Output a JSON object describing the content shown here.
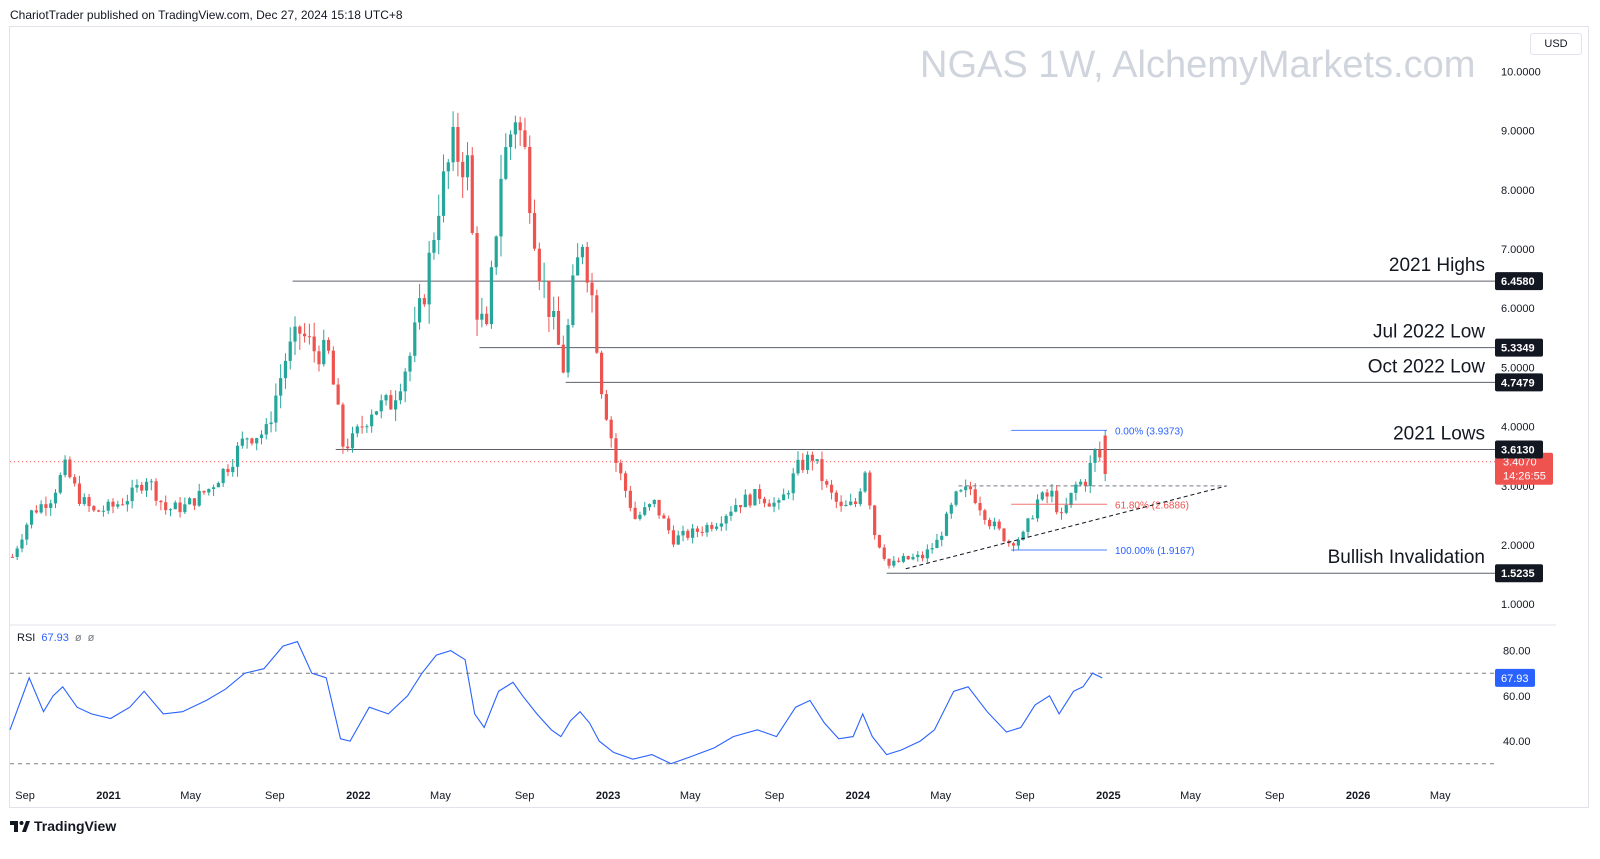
{
  "header": {
    "publisher_text": "ChariotTrader published on TradingView.com, Dec 27, 2024 15:18 UTC+8"
  },
  "watermark": "NGAS 1W, AlchemyMarkets.com",
  "currency": "USD",
  "footer": {
    "brand": "TradingView",
    "logo_icon": "tradingview-logo-icon"
  },
  "colors": {
    "up": "#26a69a",
    "down": "#ef5350",
    "rsi": "#2962ff",
    "level": "#131722"
  },
  "chart_data": [
    {
      "type": "candlestick",
      "symbol": "NGAS",
      "timeframe": "1W",
      "y_axis": {
        "ticks": [
          1.0,
          2.0,
          3.0,
          4.0,
          5.0,
          6.0,
          7.0,
          8.0,
          9.0,
          10.0
        ],
        "tick_labels": [
          "1.0000",
          "2.0000",
          "3.0000",
          "4.0000",
          "5.0000",
          "6.0000",
          "7.0000",
          "8.0000",
          "9.0000",
          "10.0000"
        ],
        "ylim": [
          0.7,
          10.7
        ]
      },
      "x_axis": {
        "tick_labels": [
          "Sep",
          "2021",
          "May",
          "Sep",
          "2022",
          "May",
          "Sep",
          "2023",
          "May",
          "Sep",
          "2024",
          "May",
          "Sep",
          "2025",
          "May",
          "Sep",
          "2026",
          "May"
        ],
        "xlim": [
          "2020-08-10",
          "2026-07-20"
        ]
      },
      "close_path": [
        [
          "2020-08-10",
          1.8
        ],
        [
          "2020-09-07",
          2.55
        ],
        [
          "2020-10-05",
          2.8
        ],
        [
          "2020-10-26",
          3.3
        ],
        [
          "2020-11-16",
          2.8
        ],
        [
          "2020-12-07",
          2.55
        ],
        [
          "2021-01-04",
          2.65
        ],
        [
          "2021-02-01",
          2.85
        ],
        [
          "2021-02-22",
          3.15
        ],
        [
          "2021-03-22",
          2.6
        ],
        [
          "2021-04-19",
          2.65
        ],
        [
          "2021-05-24",
          2.95
        ],
        [
          "2021-06-21",
          3.35
        ],
        [
          "2021-07-19",
          3.85
        ],
        [
          "2021-08-16",
          3.9
        ],
        [
          "2021-09-13",
          5.15
        ],
        [
          "2021-10-04",
          5.6
        ],
        [
          "2021-10-25",
          5.3
        ],
        [
          "2021-11-15",
          5.2
        ],
        [
          "2021-12-06",
          3.7
        ],
        [
          "2021-12-20",
          3.75
        ],
        [
          "2022-01-17",
          4.3
        ],
        [
          "2022-02-14",
          4.4
        ],
        [
          "2022-03-14",
          5.2
        ],
        [
          "2022-04-04",
          6.3
        ],
        [
          "2022-04-25",
          7.8
        ],
        [
          "2022-05-16",
          8.7
        ],
        [
          "2022-06-06",
          8.4
        ],
        [
          "2022-06-20",
          6.0
        ],
        [
          "2022-07-04",
          5.55
        ],
        [
          "2022-07-25",
          8.3
        ],
        [
          "2022-08-15",
          9.3
        ],
        [
          "2022-08-29",
          8.6
        ],
        [
          "2022-09-19",
          6.7
        ],
        [
          "2022-10-10",
          5.7
        ],
        [
          "2022-10-24",
          5.0
        ],
        [
          "2022-11-07",
          6.3
        ],
        [
          "2022-11-21",
          7.2
        ],
        [
          "2022-12-05",
          6.2
        ],
        [
          "2022-12-19",
          4.7
        ],
        [
          "2023-01-09",
          3.4
        ],
        [
          "2023-02-06",
          2.45
        ],
        [
          "2023-03-06",
          2.7
        ],
        [
          "2023-04-03",
          2.1
        ],
        [
          "2023-05-01",
          2.2
        ],
        [
          "2023-06-05",
          2.4
        ],
        [
          "2023-07-03",
          2.7
        ],
        [
          "2023-08-07",
          2.85
        ],
        [
          "2023-09-04",
          2.65
        ],
        [
          "2023-10-02",
          3.3
        ],
        [
          "2023-10-23",
          3.5
        ],
        [
          "2023-11-13",
          2.95
        ],
        [
          "2023-12-04",
          2.6
        ],
        [
          "2023-12-25",
          2.7
        ],
        [
          "2024-01-08",
          3.3
        ],
        [
          "2024-01-22",
          2.2
        ],
        [
          "2024-02-12",
          1.65
        ],
        [
          "2024-03-04",
          1.75
        ],
        [
          "2024-04-01",
          1.8
        ],
        [
          "2024-04-22",
          2.05
        ],
        [
          "2024-05-20",
          2.8
        ],
        [
          "2024-06-10",
          2.95
        ],
        [
          "2024-07-08",
          2.4
        ],
        [
          "2024-08-05",
          2.05
        ],
        [
          "2024-08-26",
          2.15
        ],
        [
          "2024-09-16",
          2.75
        ],
        [
          "2024-10-07",
          2.85
        ],
        [
          "2024-10-21",
          2.45
        ],
        [
          "2024-11-11",
          3.0
        ],
        [
          "2024-11-25",
          3.1
        ],
        [
          "2024-12-09",
          3.55
        ],
        [
          "2024-12-23",
          3.407
        ]
      ],
      "current_price": {
        "value": 3.407,
        "label": "3.4070",
        "countdown": "14:26:55"
      },
      "levels": [
        {
          "name": "2021 Highs",
          "value": 6.458,
          "label": "6.4580",
          "start": "2021-09-27"
        },
        {
          "name": "Jul 2022 Low",
          "value": 5.3349,
          "label": "5.3349",
          "start": "2022-06-27"
        },
        {
          "name": "Oct 2022 Low",
          "value": 4.7479,
          "label": "4.7479",
          "start": "2022-10-31"
        },
        {
          "name": "2021 Lows",
          "value": 3.613,
          "label": "3.6130",
          "start": "2021-11-29"
        },
        {
          "name": "Bullish Invalidation",
          "value": 1.5235,
          "label": "1.5235",
          "start": "2024-02-12"
        }
      ],
      "fibonacci": {
        "start": "2024-08-12",
        "end": "2024-12-30",
        "levels": [
          {
            "label": "0.00% (3.9373)",
            "value": 3.9373,
            "color": "#2962ff"
          },
          {
            "label": "61.80% (2.6886)",
            "value": 2.6886,
            "color": "#ef5350"
          },
          {
            "label": "100.00% (1.9167)",
            "value": 1.9167,
            "color": "#2962ff"
          }
        ]
      },
      "trendline": {
        "from": [
          "2024-03-11",
          1.6
        ],
        "to": [
          "2025-06-23",
          3.0
        ]
      },
      "support_dashed": {
        "from": [
          "2024-05-27",
          3.0
        ],
        "to": [
          "2025-06-23",
          3.0
        ]
      }
    },
    {
      "type": "line",
      "indicator": "RSI",
      "value_label": "67.93",
      "extra_labels": [
        "ø",
        "ø"
      ],
      "y_axis": {
        "ticks": [
          40,
          60,
          80
        ],
        "tick_labels": [
          "40.00",
          "60.00",
          "80.00"
        ],
        "ylim": [
          25,
          90
        ]
      },
      "bands": [
        70,
        30
      ],
      "series": [
        [
          "2020-08-10",
          45
        ],
        [
          "2020-09-07",
          68
        ],
        [
          "2020-09-28",
          53
        ],
        [
          "2020-10-12",
          60
        ],
        [
          "2020-10-26",
          64
        ],
        [
          "2020-11-16",
          55
        ],
        [
          "2020-12-07",
          52
        ],
        [
          "2021-01-04",
          50
        ],
        [
          "2021-02-01",
          55
        ],
        [
          "2021-02-22",
          62
        ],
        [
          "2021-03-22",
          52
        ],
        [
          "2021-04-19",
          53
        ],
        [
          "2021-05-24",
          58
        ],
        [
          "2021-06-21",
          63
        ],
        [
          "2021-07-19",
          70
        ],
        [
          "2021-08-16",
          72
        ],
        [
          "2021-09-13",
          82
        ],
        [
          "2021-10-04",
          84
        ],
        [
          "2021-10-25",
          70
        ],
        [
          "2021-11-15",
          68
        ],
        [
          "2021-12-06",
          41
        ],
        [
          "2021-12-20",
          40
        ],
        [
          "2022-01-17",
          55
        ],
        [
          "2022-02-14",
          52
        ],
        [
          "2022-03-14",
          60
        ],
        [
          "2022-04-04",
          70
        ],
        [
          "2022-04-25",
          78
        ],
        [
          "2022-05-16",
          80
        ],
        [
          "2022-06-06",
          76
        ],
        [
          "2022-06-20",
          52
        ],
        [
          "2022-07-04",
          46
        ],
        [
          "2022-07-25",
          62
        ],
        [
          "2022-08-15",
          66
        ],
        [
          "2022-08-29",
          60
        ],
        [
          "2022-09-19",
          52
        ],
        [
          "2022-10-10",
          45
        ],
        [
          "2022-10-24",
          42
        ],
        [
          "2022-11-07",
          49
        ],
        [
          "2022-11-21",
          53
        ],
        [
          "2022-12-05",
          48
        ],
        [
          "2022-12-19",
          40
        ],
        [
          "2023-01-09",
          35
        ],
        [
          "2023-02-06",
          32
        ],
        [
          "2023-03-06",
          34
        ],
        [
          "2023-04-03",
          30
        ],
        [
          "2023-05-01",
          33
        ],
        [
          "2023-06-05",
          37
        ],
        [
          "2023-07-03",
          42
        ],
        [
          "2023-08-07",
          45
        ],
        [
          "2023-09-04",
          42
        ],
        [
          "2023-10-02",
          55
        ],
        [
          "2023-10-23",
          58
        ],
        [
          "2023-11-13",
          48
        ],
        [
          "2023-12-04",
          41
        ],
        [
          "2023-12-25",
          42
        ],
        [
          "2024-01-08",
          52
        ],
        [
          "2024-01-22",
          42
        ],
        [
          "2024-02-12",
          34
        ],
        [
          "2024-03-04",
          36
        ],
        [
          "2024-04-01",
          40
        ],
        [
          "2024-04-22",
          45
        ],
        [
          "2024-05-20",
          62
        ],
        [
          "2024-06-10",
          64
        ],
        [
          "2024-07-08",
          53
        ],
        [
          "2024-08-05",
          44
        ],
        [
          "2024-08-26",
          46
        ],
        [
          "2024-09-16",
          56
        ],
        [
          "2024-10-07",
          60
        ],
        [
          "2024-10-21",
          52
        ],
        [
          "2024-11-11",
          62
        ],
        [
          "2024-11-25",
          64
        ],
        [
          "2024-12-09",
          70
        ],
        [
          "2024-12-23",
          67.93
        ]
      ]
    }
  ]
}
